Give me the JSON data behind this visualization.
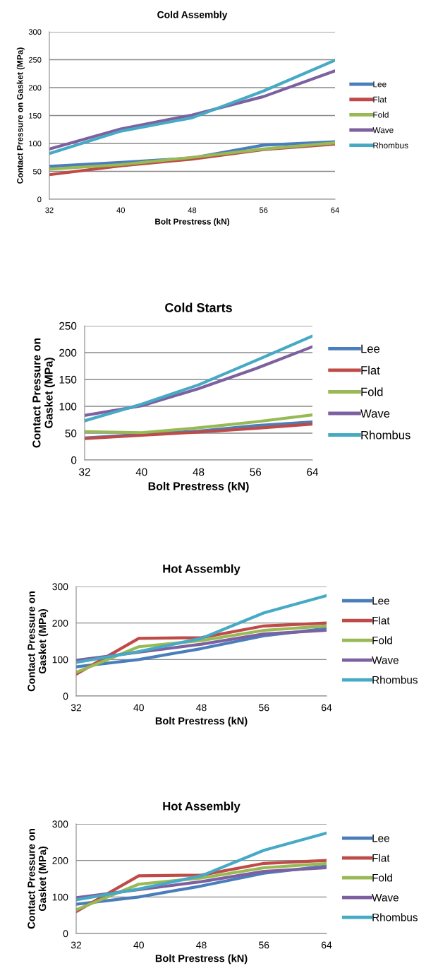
{
  "chart_data": [
    {
      "type": "line",
      "title": "Cold Assembly",
      "xlabel": "Bolt Prestress (kN)",
      "ylabel": "Contact Pressure on Gasket (MPa)",
      "x": [
        32,
        40,
        48,
        56,
        64
      ],
      "xlim": [
        32,
        64
      ],
      "xticks": [
        32,
        40,
        48,
        56,
        64
      ],
      "ylim": [
        0,
        300
      ],
      "yticks": [
        0,
        50,
        100,
        150,
        200,
        250,
        300
      ],
      "grid": "y",
      "legend": "right",
      "marker": "none",
      "line_style": "solid",
      "series": [
        {
          "name": "Lee",
          "color": "#4a7ebb",
          "values": [
            59,
            66,
            74,
            97,
            103
          ]
        },
        {
          "name": "Flat",
          "color": "#be4b48",
          "values": [
            44,
            60,
            72,
            89,
            99
          ]
        },
        {
          "name": "Fold",
          "color": "#98b954",
          "values": [
            54,
            62,
            75,
            90,
            101
          ]
        },
        {
          "name": "Wave",
          "color": "#7d60a0",
          "values": [
            90,
            126,
            151,
            184,
            230
          ]
        },
        {
          "name": "Rhombus",
          "color": "#46aac5",
          "values": [
            82,
            122,
            146,
            194,
            249
          ]
        }
      ]
    },
    {
      "type": "line",
      "title": "Cold Starts",
      "xlabel": "Bolt Prestress (kN)",
      "ylabel": "Contact Pressure on Gasket (MPa)",
      "x": [
        32,
        40,
        48,
        56,
        64
      ],
      "xlim": [
        32,
        64
      ],
      "xticks": [
        32,
        40,
        48,
        56,
        64
      ],
      "ylim": [
        0,
        250
      ],
      "yticks": [
        0,
        50,
        100,
        150,
        200,
        250
      ],
      "grid": "y",
      "legend": "right",
      "marker": "none",
      "line_style": "solid",
      "series": [
        {
          "name": "Lee",
          "color": "#4a7ebb",
          "values": [
            41,
            48,
            54,
            64,
            71
          ]
        },
        {
          "name": "Flat",
          "color": "#be4b48",
          "values": [
            40,
            46,
            52,
            59,
            67
          ]
        },
        {
          "name": "Fold",
          "color": "#98b954",
          "values": [
            53,
            51,
            60,
            71,
            84
          ]
        },
        {
          "name": "Wave",
          "color": "#7d60a0",
          "values": [
            83,
            101,
            133,
            170,
            211
          ]
        },
        {
          "name": "Rhombus",
          "color": "#46aac5",
          "values": [
            73,
            104,
            140,
            185,
            231
          ]
        }
      ]
    },
    {
      "type": "line",
      "title": "Hot Assembly",
      "xlabel": "Bolt Prestress (kN)",
      "ylabel": "Contact Pressure on Gasket (MPa)",
      "x": [
        32,
        40,
        48,
        56,
        64
      ],
      "xlim": [
        32,
        64
      ],
      "xticks": [
        32,
        40,
        48,
        56,
        64
      ],
      "ylim": [
        0,
        300
      ],
      "yticks": [
        0,
        100,
        200,
        300
      ],
      "grid": "y",
      "legend": "right",
      "marker": "none",
      "line_style": "solid",
      "series": [
        {
          "name": "Lee",
          "color": "#4a7ebb",
          "values": [
            80,
            100,
            130,
            165,
            185
          ]
        },
        {
          "name": "Flat",
          "color": "#be4b48",
          "values": [
            60,
            158,
            160,
            192,
            200
          ]
        },
        {
          "name": "Fold",
          "color": "#98b954",
          "values": [
            65,
            135,
            152,
            180,
            192
          ]
        },
        {
          "name": "Wave",
          "color": "#7d60a0",
          "values": [
            98,
            120,
            142,
            170,
            180
          ]
        },
        {
          "name": "Rhombus",
          "color": "#46aac5",
          "values": [
            92,
            122,
            158,
            228,
            275
          ]
        }
      ]
    },
    {
      "type": "line",
      "title": "Hot Assembly",
      "xlabel": "Bolt Prestress (kN)",
      "ylabel": "Contact Pressure on Gasket (MPa)",
      "x": [
        32,
        40,
        48,
        56,
        64
      ],
      "xlim": [
        32,
        64
      ],
      "xticks": [
        32,
        40,
        48,
        56,
        64
      ],
      "ylim": [
        0,
        300
      ],
      "yticks": [
        0,
        100,
        200,
        300
      ],
      "grid": "y",
      "legend": "right",
      "marker": "none",
      "line_style": "solid",
      "series": [
        {
          "name": "Lee",
          "color": "#4a7ebb",
          "values": [
            80,
            100,
            130,
            165,
            185
          ]
        },
        {
          "name": "Flat",
          "color": "#be4b48",
          "values": [
            60,
            158,
            160,
            192,
            200
          ]
        },
        {
          "name": "Fold",
          "color": "#98b954",
          "values": [
            65,
            135,
            152,
            180,
            192
          ]
        },
        {
          "name": "Wave",
          "color": "#7d60a0",
          "values": [
            98,
            120,
            142,
            170,
            180
          ]
        },
        {
          "name": "Rhombus",
          "color": "#46aac5",
          "values": [
            92,
            122,
            158,
            228,
            275
          ]
        }
      ]
    }
  ]
}
